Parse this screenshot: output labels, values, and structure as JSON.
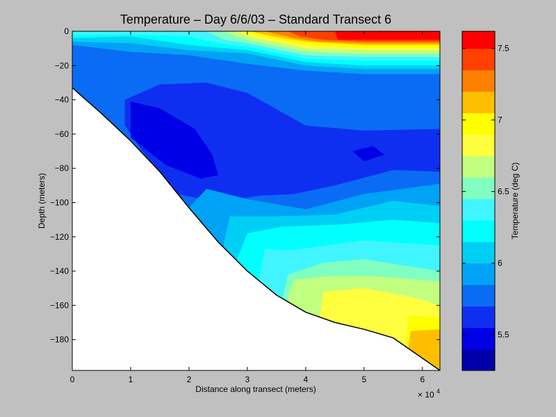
{
  "chart_data": {
    "type": "heatmap",
    "subtype": "filled-contour",
    "title": "Temperature – Day 6/6/03 – Standard Transect 6",
    "xlabel": "Distance along transect (meters)",
    "ylabel": "Depth (meters)",
    "x_multiplier_label": "× 10",
    "x_multiplier_exponent": "4",
    "xlim": [
      0,
      6.3
    ],
    "ylim": [
      -198,
      0
    ],
    "x_ticks": [
      0,
      1,
      2,
      3,
      4,
      5,
      6
    ],
    "y_ticks": [
      0,
      -20,
      -40,
      -60,
      -80,
      -100,
      -120,
      -140,
      -160,
      -180
    ],
    "x_tick_labels": [
      "0",
      "1",
      "2",
      "3",
      "4",
      "5",
      "6"
    ],
    "y_tick_labels": [
      "0",
      "−20",
      "−40",
      "−60",
      "−80",
      "−100",
      "−120",
      "−140",
      "−160",
      "−180"
    ],
    "bottom_profile": [
      [
        0,
        -33
      ],
      [
        0.5,
        -48
      ],
      [
        1,
        -64
      ],
      [
        1.5,
        -82
      ],
      [
        2,
        -103
      ],
      [
        2.5,
        -123
      ],
      [
        3,
        -140
      ],
      [
        3.5,
        -154
      ],
      [
        4,
        -164
      ],
      [
        4.5,
        -170
      ],
      [
        5,
        -174
      ],
      [
        5.5,
        -179
      ],
      [
        6.3,
        -198
      ]
    ],
    "colorbar": {
      "label": "Temperature (deg C)",
      "range": [
        5.25,
        7.62
      ],
      "ticks": [
        5.5,
        6,
        6.5,
        7,
        7.5
      ],
      "tick_labels": [
        "5.5",
        "6",
        "6.5",
        "7",
        "7.5"
      ],
      "levels": [
        5.25,
        5.4,
        5.55,
        5.7,
        5.85,
        6.0,
        6.15,
        6.3,
        6.45,
        6.6,
        6.75,
        6.9,
        7.05,
        7.2,
        7.35,
        7.5,
        7.62
      ],
      "colors": [
        "#0000aa",
        "#0000e6",
        "#0f2ff0",
        "#0a6cf5",
        "#00a2f5",
        "#00cff5",
        "#00ffff",
        "#40f5ff",
        "#80ffc0",
        "#c0ff80",
        "#ffff40",
        "#ffff00",
        "#ffbf00",
        "#ff8000",
        "#ff4000",
        "#ff0000",
        "#c00000"
      ]
    },
    "contour_bands": [
      {
        "min_temp": 5.85,
        "boundary": [
          [
            0,
            -8
          ],
          [
            1,
            -12
          ],
          [
            2,
            -14
          ],
          [
            3,
            -19
          ],
          [
            4,
            -23
          ],
          [
            5,
            -25
          ],
          [
            6.3,
            -25
          ]
        ]
      },
      {
        "min_temp": 6.0,
        "boundary": [
          [
            0,
            -6
          ],
          [
            1,
            -7
          ],
          [
            2,
            -11
          ],
          [
            3,
            -13
          ],
          [
            4,
            -20
          ],
          [
            5,
            -22
          ],
          [
            6.3,
            -22
          ]
        ]
      },
      {
        "min_temp": 6.15,
        "boundary": [
          [
            0,
            -4
          ],
          [
            1,
            -3
          ],
          [
            2,
            -8
          ],
          [
            3,
            -11
          ],
          [
            4,
            -18
          ],
          [
            5,
            -20
          ],
          [
            6.3,
            -20
          ]
        ]
      },
      {
        "min_temp": 6.3,
        "boundary": [
          [
            0,
            -2
          ],
          [
            1,
            -2
          ],
          [
            2,
            -3
          ],
          [
            2.5,
            -7
          ],
          [
            3,
            -9
          ],
          [
            4,
            -16
          ],
          [
            5,
            -17
          ],
          [
            6.3,
            -17
          ]
        ]
      },
      {
        "min_temp": 6.45,
        "boundary": [
          [
            2.3,
            0
          ],
          [
            2.6,
            -5
          ],
          [
            3,
            -7
          ],
          [
            4,
            -14
          ],
          [
            5,
            -15
          ],
          [
            6.3,
            -15
          ]
        ]
      },
      {
        "min_temp": 6.6,
        "boundary": [
          [
            2.6,
            0
          ],
          [
            2.8,
            -3
          ],
          [
            3.1,
            -6
          ],
          [
            4,
            -12
          ],
          [
            5,
            -13
          ],
          [
            6.3,
            -13
          ]
        ]
      },
      {
        "min_temp": 6.75,
        "boundary": [
          [
            2.8,
            0
          ],
          [
            3.0,
            -3
          ],
          [
            3.3,
            -5
          ],
          [
            4,
            -10
          ],
          [
            5,
            -11
          ],
          [
            6.3,
            -11
          ]
        ]
      },
      {
        "min_temp": 6.9,
        "boundary": [
          [
            2.95,
            0
          ],
          [
            3.2,
            -3
          ],
          [
            3.5,
            -5
          ],
          [
            4,
            -8
          ],
          [
            5,
            -10
          ],
          [
            6.3,
            -10
          ]
        ]
      },
      {
        "min_temp": 7.05,
        "boundary": [
          [
            3.05,
            0
          ],
          [
            3.3,
            -2
          ],
          [
            3.6,
            -4
          ],
          [
            4,
            -6
          ],
          [
            5,
            -8
          ],
          [
            6.3,
            -8
          ]
        ]
      },
      {
        "min_temp": 7.2,
        "boundary": [
          [
            3.3,
            0
          ],
          [
            3.55,
            -2
          ],
          [
            3.8,
            -4
          ],
          [
            4.2,
            -6
          ],
          [
            5,
            -7
          ],
          [
            6.3,
            -7
          ]
        ]
      },
      {
        "min_temp": 7.35,
        "boundary": [
          [
            3.7,
            0
          ],
          [
            3.9,
            -3
          ],
          [
            4.3,
            -5
          ],
          [
            5,
            -6
          ],
          [
            6.3,
            -6
          ]
        ]
      },
      {
        "min_temp": 7.5,
        "boundary": [
          [
            4.5,
            0
          ],
          [
            4.55,
            -5
          ],
          [
            5,
            -5
          ],
          [
            6.3,
            -5
          ]
        ]
      }
    ],
    "deep_bands": [
      {
        "temp": 5.7,
        "polygon": [
          [
            0.4,
            -42
          ],
          [
            1.0,
            -47
          ],
          [
            1.8,
            -38
          ],
          [
            2.8,
            -36
          ],
          [
            4.0,
            -46
          ],
          [
            5.0,
            -49
          ],
          [
            6.3,
            -48
          ],
          [
            6.3,
            -88
          ],
          [
            5.5,
            -90
          ],
          [
            4.5,
            -98
          ],
          [
            3.5,
            -100
          ],
          [
            2.5,
            -103
          ],
          [
            1.5,
            -82
          ],
          [
            0.5,
            -48
          ]
        ]
      },
      {
        "temp": 5.55,
        "polygon": [
          [
            0.9,
            -40
          ],
          [
            1.5,
            -31
          ],
          [
            2.3,
            -30
          ],
          [
            3.0,
            -36
          ],
          [
            4.0,
            -55
          ],
          [
            5.0,
            -58
          ],
          [
            6.3,
            -57
          ],
          [
            6.3,
            -82
          ],
          [
            5.5,
            -81
          ],
          [
            4.5,
            -90
          ],
          [
            3.8,
            -95
          ],
          [
            3.2,
            -96
          ],
          [
            2.5,
            -100
          ],
          [
            1.8,
            -95
          ],
          [
            1.2,
            -70
          ],
          [
            0.9,
            -55
          ]
        ]
      },
      {
        "temp": 5.4,
        "polygon": [
          [
            1.0,
            -41
          ],
          [
            1.5,
            -45
          ],
          [
            2.1,
            -57
          ],
          [
            2.4,
            -72
          ],
          [
            2.5,
            -84
          ],
          [
            2.2,
            -86
          ],
          [
            1.6,
            -78
          ],
          [
            1.0,
            -62
          ]
        ]
      },
      {
        "temp": 5.4,
        "polygon": [
          [
            4.8,
            -70
          ],
          [
            5.15,
            -67
          ],
          [
            5.35,
            -72
          ],
          [
            5.0,
            -76
          ]
        ]
      }
    ],
    "bottom_bands": [
      {
        "temp": 5.85,
        "polygon": [
          [
            2.0,
            -103
          ],
          [
            2.3,
            -92
          ],
          [
            3.0,
            -98
          ],
          [
            4.0,
            -104
          ],
          [
            5.0,
            -95
          ],
          [
            6.3,
            -89
          ],
          [
            6.3,
            -198
          ],
          [
            2.0,
            -198
          ]
        ]
      },
      {
        "temp": 6.0,
        "polygon": [
          [
            2.6,
            -123
          ],
          [
            2.7,
            -108
          ],
          [
            3.5,
            -108
          ],
          [
            4.5,
            -107
          ],
          [
            5.5,
            -99
          ],
          [
            6.3,
            -102
          ],
          [
            6.3,
            -198
          ],
          [
            2.6,
            -198
          ]
        ]
      },
      {
        "temp": 6.15,
        "polygon": [
          [
            2.8,
            -135
          ],
          [
            3.0,
            -118
          ],
          [
            3.6,
            -114
          ],
          [
            4.5,
            -113
          ],
          [
            5.5,
            -110
          ],
          [
            6.3,
            -112
          ],
          [
            6.3,
            -198
          ],
          [
            2.8,
            -198
          ]
        ]
      },
      {
        "temp": 6.3,
        "polygon": [
          [
            3.2,
            -145
          ],
          [
            3.3,
            -127
          ],
          [
            3.7,
            -128
          ],
          [
            5.0,
            -122
          ],
          [
            6.3,
            -125
          ],
          [
            6.3,
            -198
          ],
          [
            3.2,
            -198
          ]
        ]
      },
      {
        "temp": 6.45,
        "polygon": [
          [
            3.6,
            -156
          ],
          [
            3.7,
            -142
          ],
          [
            4.3,
            -135
          ],
          [
            5.0,
            -133
          ],
          [
            6.3,
            -140
          ],
          [
            6.3,
            -198
          ],
          [
            3.6,
            -198
          ]
        ]
      },
      {
        "temp": 6.6,
        "polygon": [
          [
            3.7,
            -154
          ],
          [
            3.8,
            -145
          ],
          [
            4.4,
            -143
          ],
          [
            5.2,
            -143
          ],
          [
            6.3,
            -146
          ],
          [
            6.3,
            -198
          ],
          [
            3.7,
            -198
          ]
        ]
      },
      {
        "temp": 6.75,
        "polygon": [
          [
            4.25,
            -166
          ],
          [
            4.3,
            -152
          ],
          [
            5.0,
            -150
          ],
          [
            5.8,
            -155
          ],
          [
            6.3,
            -160
          ],
          [
            6.3,
            -198
          ],
          [
            4.25,
            -198
          ]
        ]
      },
      {
        "temp": 6.9,
        "polygon": [
          [
            5.7,
            -198
          ],
          [
            5.75,
            -166
          ],
          [
            6.3,
            -167
          ],
          [
            6.3,
            -198
          ]
        ]
      },
      {
        "temp": 7.05,
        "polygon": [
          [
            5.7,
            -198
          ],
          [
            5.8,
            -175
          ],
          [
            6.3,
            -174
          ],
          [
            6.3,
            -198
          ]
        ]
      }
    ]
  }
}
